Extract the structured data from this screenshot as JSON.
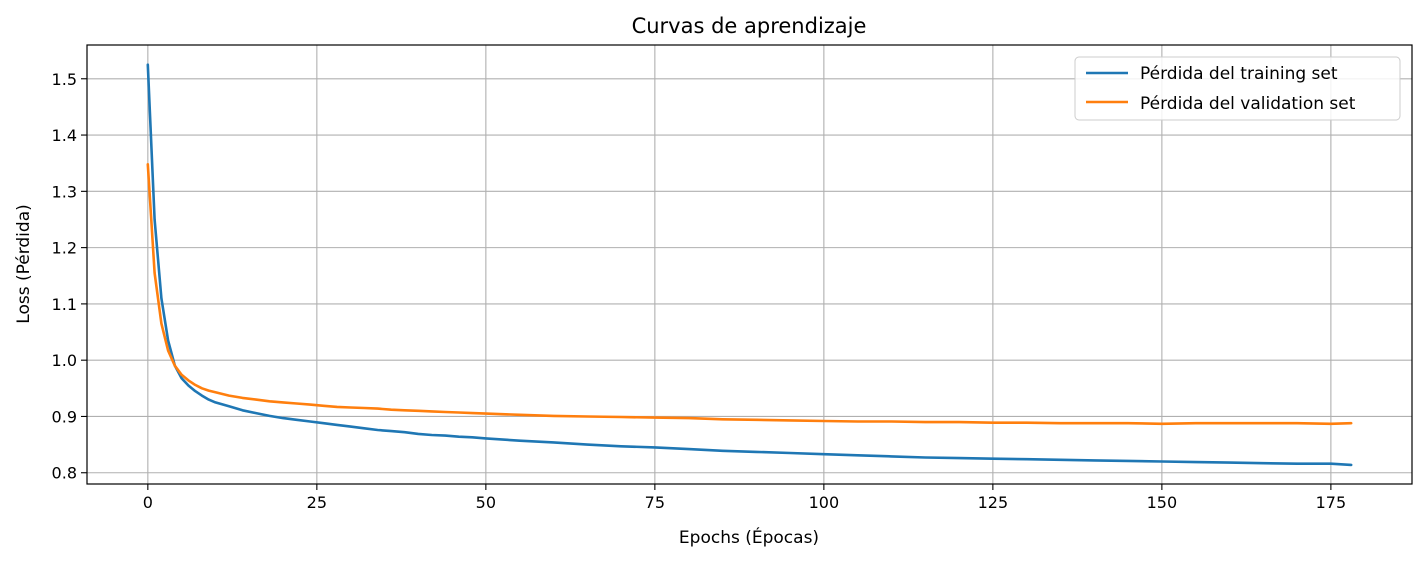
{
  "chart_data": {
    "type": "line",
    "title": "Curvas de aprendizaje",
    "xlabel": "Epochs (Épocas)",
    "ylabel": "Loss (Pérdida)",
    "xlim": [
      -9,
      187
    ],
    "ylim": [
      0.78,
      1.56
    ],
    "xticks": [
      0,
      25,
      50,
      75,
      100,
      125,
      150,
      175
    ],
    "yticks": [
      0.8,
      0.9,
      1.0,
      1.1,
      1.2,
      1.3,
      1.4,
      1.5
    ],
    "grid": true,
    "legend_position": "top-right",
    "series": [
      {
        "name": "Pérdida del training set",
        "color": "#1f77b4",
        "x": [
          0,
          1,
          2,
          3,
          4,
          5,
          6,
          7,
          8,
          9,
          10,
          12,
          14,
          16,
          18,
          20,
          22,
          24,
          26,
          28,
          30,
          32,
          34,
          36,
          38,
          40,
          42,
          44,
          46,
          48,
          50,
          55,
          60,
          65,
          70,
          75,
          80,
          85,
          90,
          95,
          100,
          105,
          110,
          115,
          120,
          125,
          130,
          135,
          140,
          145,
          150,
          155,
          160,
          165,
          170,
          175,
          178
        ],
        "y": [
          1.525,
          1.25,
          1.11,
          1.035,
          0.99,
          0.968,
          0.955,
          0.945,
          0.937,
          0.93,
          0.925,
          0.918,
          0.911,
          0.906,
          0.901,
          0.897,
          0.894,
          0.891,
          0.888,
          0.885,
          0.882,
          0.879,
          0.876,
          0.874,
          0.872,
          0.869,
          0.867,
          0.866,
          0.864,
          0.863,
          0.861,
          0.857,
          0.854,
          0.85,
          0.847,
          0.845,
          0.842,
          0.839,
          0.837,
          0.835,
          0.833,
          0.831,
          0.829,
          0.827,
          0.826,
          0.825,
          0.824,
          0.823,
          0.822,
          0.821,
          0.82,
          0.819,
          0.818,
          0.817,
          0.816,
          0.816,
          0.814
        ]
      },
      {
        "name": "Pérdida del validation set",
        "color": "#ff7f0e",
        "x": [
          0,
          1,
          2,
          3,
          4,
          5,
          6,
          7,
          8,
          9,
          10,
          12,
          14,
          16,
          18,
          20,
          22,
          24,
          26,
          28,
          30,
          32,
          34,
          36,
          38,
          40,
          42,
          44,
          46,
          48,
          50,
          55,
          60,
          65,
          70,
          75,
          80,
          85,
          90,
          95,
          100,
          105,
          110,
          115,
          120,
          125,
          130,
          135,
          140,
          145,
          150,
          155,
          160,
          165,
          170,
          175,
          178
        ],
        "y": [
          1.348,
          1.155,
          1.065,
          1.017,
          0.99,
          0.974,
          0.964,
          0.956,
          0.95,
          0.946,
          0.943,
          0.937,
          0.933,
          0.93,
          0.927,
          0.925,
          0.923,
          0.921,
          0.919,
          0.917,
          0.916,
          0.915,
          0.914,
          0.912,
          0.911,
          0.91,
          0.909,
          0.908,
          0.907,
          0.906,
          0.905,
          0.903,
          0.901,
          0.9,
          0.899,
          0.898,
          0.897,
          0.895,
          0.894,
          0.893,
          0.892,
          0.891,
          0.891,
          0.89,
          0.89,
          0.889,
          0.889,
          0.888,
          0.888,
          0.888,
          0.887,
          0.888,
          0.888,
          0.888,
          0.888,
          0.887,
          0.888
        ]
      }
    ]
  }
}
